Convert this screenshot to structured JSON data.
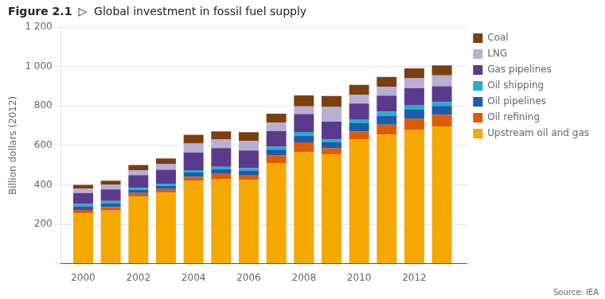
{
  "chart_data": {
    "type": "bar",
    "stacked": true,
    "title": "Figure 2.1",
    "subtitle": "▷  Global investment in fossil fuel supply",
    "ylabel": "Billion dollars (2012)",
    "annotations": [
      "Source: IEA"
    ],
    "x": [
      2000,
      2001,
      2002,
      2003,
      2004,
      2005,
      2006,
      2007,
      2008,
      2009,
      2010,
      2011,
      2012,
      2013
    ],
    "xlim": [
      1999.2,
      2013.9
    ],
    "xticks": [
      2000,
      2002,
      2004,
      2006,
      2008,
      2010,
      2012
    ],
    "ylim": [
      0,
      1200
    ],
    "yticks": [
      {
        "value": 0,
        "label": ""
      },
      200,
      400,
      600,
      800,
      {
        "value": 1000,
        "label": "1 000"
      },
      {
        "value": 1200,
        "label": "1 200"
      }
    ],
    "grid": "y",
    "legend": "right",
    "series": [
      {
        "name": "Upstream oil and gas",
        "color": "#F5A800",
        "values": [
          255,
          270,
          340,
          360,
          420,
          430,
          425,
          510,
          565,
          555,
          630,
          655,
          680,
          695
        ]
      },
      {
        "name": "Oil refining",
        "color": "#E05A00",
        "values": [
          18,
          18,
          18,
          18,
          20,
          25,
          25,
          40,
          50,
          30,
          40,
          50,
          55,
          60
        ]
      },
      {
        "name": "Oil pipelines",
        "color": "#1A5DAD",
        "values": [
          18,
          18,
          16,
          18,
          22,
          23,
          22,
          28,
          35,
          30,
          42,
          45,
          48,
          45
        ]
      },
      {
        "name": "Oil shipping",
        "color": "#29ABD4",
        "values": [
          12,
          12,
          10,
          10,
          12,
          13,
          12,
          15,
          18,
          15,
          20,
          22,
          22,
          20
        ]
      },
      {
        "name": "Gas pipelines",
        "color": "#5B3A8E",
        "values": [
          55,
          58,
          65,
          70,
          90,
          95,
          90,
          80,
          90,
          90,
          80,
          80,
          85,
          80
        ]
      },
      {
        "name": "LNG",
        "color": "#B9AED3",
        "values": [
          22,
          25,
          25,
          30,
          45,
          45,
          48,
          42,
          40,
          75,
          45,
          45,
          50,
          55
        ]
      },
      {
        "name": "Coal",
        "color": "#7B3F10",
        "values": [
          20,
          20,
          26,
          28,
          45,
          40,
          45,
          45,
          55,
          55,
          50,
          50,
          50,
          50
        ]
      }
    ]
  }
}
